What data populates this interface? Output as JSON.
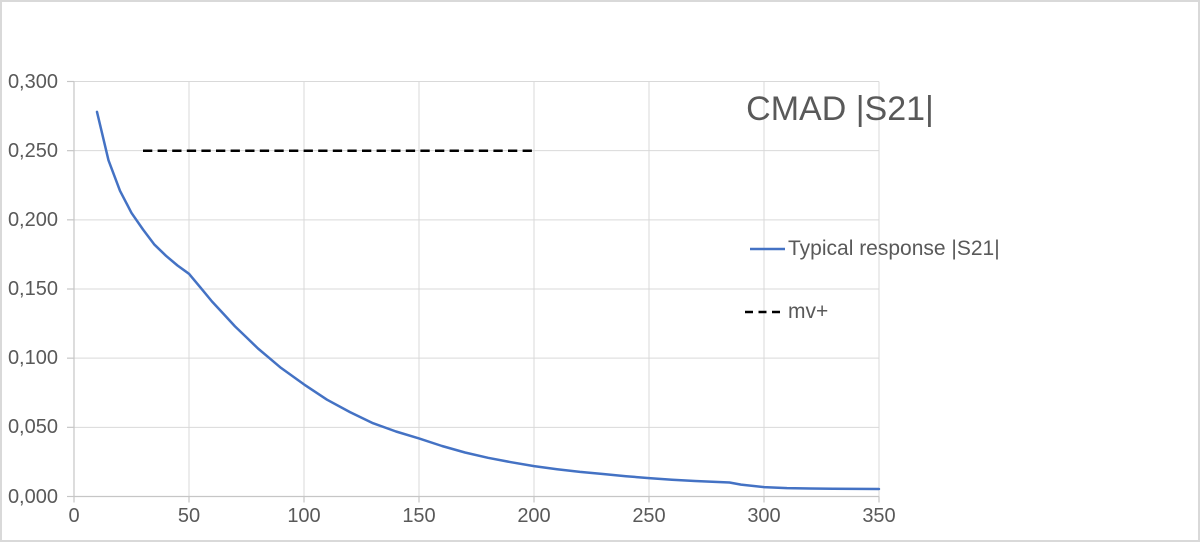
{
  "window": {
    "background": "#FFFFFF",
    "border_color": "#D9D9D9"
  },
  "chart_data": {
    "type": "line",
    "title": "CMAD |S21|",
    "xlabel": "",
    "ylabel": "",
    "xlim": [
      0,
      350
    ],
    "ylim": [
      0,
      0.3
    ],
    "x_ticks": [
      0,
      50,
      100,
      150,
      200,
      250,
      300,
      350
    ],
    "x_tick_labels": [
      "0",
      "50",
      "100",
      "150",
      "200",
      "250",
      "300",
      "350"
    ],
    "y_ticks": [
      0,
      0.05,
      0.1,
      0.15,
      0.2,
      0.25,
      0.3
    ],
    "y_tick_labels": [
      "0,000",
      "0,050",
      "0,100",
      "0,150",
      "0,200",
      "0,250",
      "0,300"
    ],
    "decimal_separator": ",",
    "grid": true,
    "legend_position": "right",
    "colors": {
      "gridline": "#D9D9D9",
      "axis": "#C6C6C6",
      "text": "#595959",
      "title": "#595959"
    },
    "series": [
      {
        "name": "Typical response |S21|",
        "color": "#4472C4",
        "line_style": "solid",
        "x": [
          10,
          15,
          20,
          25,
          30,
          35,
          40,
          45,
          50,
          55,
          60,
          65,
          70,
          75,
          80,
          85,
          90,
          95,
          100,
          110,
          120,
          130,
          140,
          150,
          160,
          170,
          180,
          190,
          200,
          210,
          220,
          230,
          240,
          250,
          260,
          270,
          280,
          285,
          290,
          300,
          310,
          320,
          330,
          340,
          350
        ],
        "y": [
          0.278,
          0.243,
          0.221,
          0.205,
          0.193,
          0.182,
          0.174,
          0.167,
          0.161,
          0.151,
          0.141,
          0.132,
          0.123,
          0.115,
          0.107,
          0.1,
          0.093,
          0.087,
          0.081,
          0.07,
          0.061,
          0.053,
          0.047,
          0.042,
          0.0365,
          0.0318,
          0.028,
          0.0248,
          0.022,
          0.0197,
          0.0178,
          0.0163,
          0.0147,
          0.0133,
          0.0121,
          0.0112,
          0.0105,
          0.0101,
          0.0086,
          0.0068,
          0.0061,
          0.0058,
          0.0056,
          0.0055,
          0.0054
        ]
      },
      {
        "name": "mv+",
        "color": "#000000",
        "line_style": "dashed",
        "x": [
          30,
          200
        ],
        "y": [
          0.25,
          0.25
        ]
      }
    ]
  }
}
